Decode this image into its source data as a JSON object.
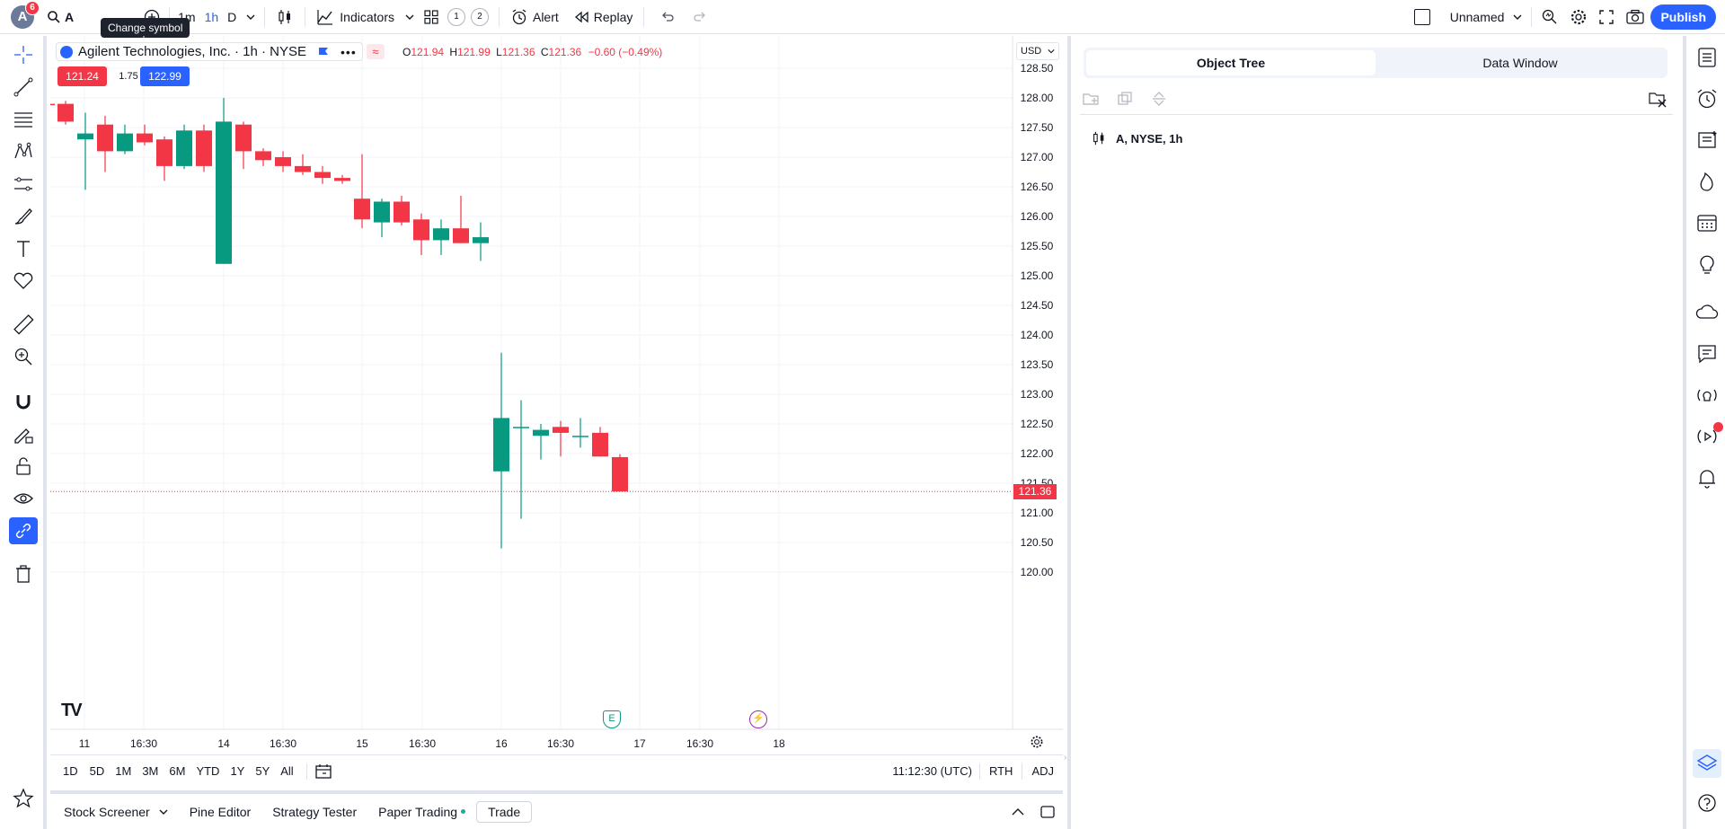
{
  "topbar": {
    "avatar_letter": "A",
    "notif_count": "6",
    "symbol": "A",
    "intervals": [
      "1m",
      "1h",
      "D"
    ],
    "indicators_label": "Indicators",
    "layout_1": "1",
    "layout_2": "2",
    "alert_label": "Alert",
    "replay_label": "Replay",
    "layout_name": "Unnamed",
    "publish_label": "Publish"
  },
  "tooltip": "Change symbol",
  "legend": {
    "title": "Agilent Technologies, Inc. · 1h · NYSE",
    "o_label": "O",
    "o_val": "121.94",
    "h_label": "H",
    "h_val": "121.99",
    "l_label": "L",
    "l_val": "121.36",
    "c_label": "C",
    "c_val": "121.36",
    "change": "−0.60 (−0.49%)",
    "bid": "121.24",
    "spread": "1.75",
    "ask": "122.99"
  },
  "currency": "USD",
  "chart_data": {
    "type": "candlestick",
    "ylim": [
      119.75,
      128.75
    ],
    "price_ticks": [
      "128.50",
      "128.00",
      "127.50",
      "127.00",
      "126.50",
      "126.00",
      "125.50",
      "125.00",
      "124.50",
      "124.00",
      "123.50",
      "123.00",
      "122.50",
      "122.00",
      "121.50",
      "121.00",
      "120.50",
      "120.00"
    ],
    "time_labels": [
      {
        "label": "11",
        "x": 38
      },
      {
        "label": "16:30",
        "x": 104
      },
      {
        "label": "14",
        "x": 193
      },
      {
        "label": "16:30",
        "x": 259
      },
      {
        "label": "15",
        "x": 347
      },
      {
        "label": "16:30",
        "x": 414
      },
      {
        "label": "16",
        "x": 502
      },
      {
        "label": "16:30",
        "x": 568
      },
      {
        "label": "17",
        "x": 656
      },
      {
        "label": "16:30",
        "x": 723
      },
      {
        "label": "18",
        "x": 811
      }
    ],
    "last_price": "121.36",
    "candles": [
      {
        "x": -4,
        "o": 127.9,
        "h": 128.15,
        "l": 127.7,
        "c": 127.88
      },
      {
        "x": 17,
        "o": 127.9,
        "h": 127.95,
        "l": 127.55,
        "c": 127.6
      },
      {
        "x": 39,
        "o": 127.3,
        "h": 127.75,
        "l": 126.45,
        "c": 127.4
      },
      {
        "x": 61,
        "o": 127.55,
        "h": 127.7,
        "l": 126.75,
        "c": 127.1
      },
      {
        "x": 83,
        "o": 127.1,
        "h": 127.55,
        "l": 127.05,
        "c": 127.4
      },
      {
        "x": 105,
        "o": 127.4,
        "h": 127.55,
        "l": 127.2,
        "c": 127.25
      },
      {
        "x": 127,
        "o": 127.3,
        "h": 127.35,
        "l": 126.6,
        "c": 126.85
      },
      {
        "x": 149,
        "o": 126.85,
        "h": 127.55,
        "l": 126.8,
        "c": 127.45
      },
      {
        "x": 171,
        "o": 127.45,
        "h": 127.55,
        "l": 126.75,
        "c": 126.85
      },
      {
        "x": 193,
        "o": 125.2,
        "h": 128.0,
        "l": 125.2,
        "c": 127.6
      },
      {
        "x": 215,
        "o": 127.55,
        "h": 127.6,
        "l": 126.8,
        "c": 127.1
      },
      {
        "x": 237,
        "o": 127.1,
        "h": 127.15,
        "l": 126.85,
        "c": 126.95
      },
      {
        "x": 259,
        "o": 127.0,
        "h": 127.1,
        "l": 126.75,
        "c": 126.85
      },
      {
        "x": 281,
        "o": 126.85,
        "h": 127.05,
        "l": 126.7,
        "c": 126.75
      },
      {
        "x": 303,
        "o": 126.75,
        "h": 126.85,
        "l": 126.55,
        "c": 126.65
      },
      {
        "x": 325,
        "o": 126.65,
        "h": 126.7,
        "l": 126.55,
        "c": 126.6
      },
      {
        "x": 347,
        "o": 126.3,
        "h": 127.05,
        "l": 125.8,
        "c": 125.95
      },
      {
        "x": 369,
        "o": 125.9,
        "h": 126.3,
        "l": 125.65,
        "c": 126.25
      },
      {
        "x": 391,
        "o": 126.25,
        "h": 126.35,
        "l": 125.85,
        "c": 125.9
      },
      {
        "x": 413,
        "o": 125.95,
        "h": 126.05,
        "l": 125.35,
        "c": 125.6
      },
      {
        "x": 435,
        "o": 125.6,
        "h": 125.95,
        "l": 125.35,
        "c": 125.8
      },
      {
        "x": 457,
        "o": 125.8,
        "h": 126.35,
        "l": 125.55,
        "c": 125.55
      },
      {
        "x": 479,
        "o": 125.55,
        "h": 125.9,
        "l": 125.25,
        "c": 125.65
      },
      {
        "x": 502,
        "o": 121.7,
        "h": 123.7,
        "l": 120.4,
        "c": 122.6
      },
      {
        "x": 524,
        "o": 122.45,
        "h": 122.9,
        "l": 120.9,
        "c": 122.45
      },
      {
        "x": 546,
        "o": 122.3,
        "h": 122.5,
        "l": 121.9,
        "c": 122.4
      },
      {
        "x": 568,
        "o": 122.45,
        "h": 122.55,
        "l": 121.95,
        "c": 122.35
      },
      {
        "x": 590,
        "o": 122.3,
        "h": 122.6,
        "l": 122.1,
        "c": 122.3
      },
      {
        "x": 612,
        "o": 122.35,
        "h": 122.45,
        "l": 121.95,
        "c": 121.95
      },
      {
        "x": 634,
        "o": 121.94,
        "h": 121.99,
        "l": 121.36,
        "c": 121.36
      }
    ]
  },
  "ranges": [
    "1D",
    "5D",
    "1M",
    "3M",
    "6M",
    "YTD",
    "1Y",
    "5Y",
    "All"
  ],
  "clock": "11:12:30 (UTC)",
  "session": "RTH",
  "adj": "ADJ",
  "bottom_tabs": [
    "Stock Screener",
    "Pine Editor",
    "Strategy Tester",
    "Paper Trading",
    "Trade"
  ],
  "panel": {
    "tab_object_tree": "Object Tree",
    "tab_data_window": "Data Window",
    "tree_item": "A, NYSE, 1h"
  }
}
